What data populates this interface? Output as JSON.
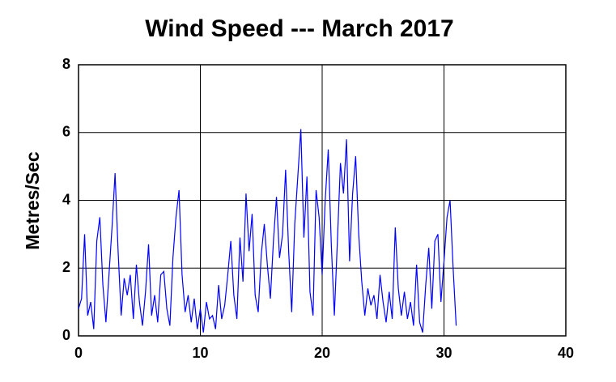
{
  "chart_data": {
    "type": "line",
    "title": "Wind Speed --- March 2017",
    "y_label": "Metres/Sec",
    "xlim": [
      0,
      40
    ],
    "xticks": [
      0,
      10,
      20,
      30,
      40
    ],
    "ylim": [
      0,
      8
    ],
    "yticks": [
      0,
      2,
      4,
      6,
      8
    ],
    "grid": true,
    "series": [
      {
        "color": "#0000ff",
        "x": [
          0,
          0.25,
          0.5,
          0.75,
          1,
          1.25,
          1.5,
          1.75,
          2,
          2.25,
          2.5,
          2.75,
          3,
          3.25,
          3.5,
          3.75,
          4,
          4.25,
          4.5,
          4.75,
          5,
          5.25,
          5.5,
          5.75,
          6,
          6.25,
          6.5,
          6.75,
          7,
          7.25,
          7.5,
          7.75,
          8,
          8.25,
          8.5,
          8.75,
          9,
          9.25,
          9.5,
          9.75,
          10,
          10.25,
          10.5,
          10.75,
          11,
          11.25,
          11.5,
          11.75,
          12,
          12.25,
          12.5,
          12.75,
          13,
          13.25,
          13.5,
          13.75,
          14,
          14.25,
          14.5,
          14.75,
          15,
          15.25,
          15.5,
          15.75,
          16,
          16.25,
          16.5,
          16.75,
          17,
          17.25,
          17.5,
          17.75,
          18,
          18.25,
          18.5,
          18.75,
          19,
          19.25,
          19.5,
          19.75,
          20,
          20.25,
          20.5,
          20.75,
          21,
          21.25,
          21.5,
          21.75,
          22,
          22.25,
          22.5,
          22.75,
          23,
          23.25,
          23.5,
          23.75,
          24,
          24.25,
          24.5,
          24.75,
          25,
          25.25,
          25.5,
          25.75,
          26,
          26.25,
          26.5,
          26.75,
          27,
          27.25,
          27.5,
          27.75,
          28,
          28.25,
          28.5,
          28.75,
          29,
          29.25,
          29.5,
          29.75,
          30,
          30.25,
          30.5,
          30.75,
          31
        ],
        "values": [
          0.8,
          1.1,
          3.0,
          0.6,
          1.0,
          0.2,
          2.8,
          3.5,
          1.5,
          0.4,
          1.8,
          3.2,
          4.8,
          2.5,
          0.6,
          1.7,
          1.2,
          1.8,
          0.5,
          2.1,
          1.0,
          0.3,
          1.3,
          2.7,
          0.6,
          1.2,
          0.4,
          1.8,
          1.9,
          0.8,
          0.3,
          2.3,
          3.5,
          4.3,
          1.8,
          0.7,
          1.2,
          0.4,
          1.1,
          0.2,
          0.8,
          0.1,
          1.0,
          0.5,
          0.6,
          0.2,
          1.5,
          0.5,
          0.9,
          1.8,
          2.8,
          1.2,
          0.5,
          2.9,
          1.6,
          4.2,
          2.5,
          3.6,
          1.2,
          0.7,
          2.4,
          3.3,
          2.1,
          1.1,
          2.8,
          4.1,
          2.3,
          3.0,
          4.9,
          2.5,
          0.7,
          3.3,
          4.7,
          6.1,
          2.9,
          4.7,
          1.3,
          0.6,
          4.3,
          3.5,
          1.8,
          4.0,
          5.5,
          2.7,
          0.6,
          2.8,
          5.1,
          4.2,
          5.8,
          2.2,
          4.2,
          5.3,
          3.0,
          1.6,
          0.6,
          1.4,
          0.9,
          1.2,
          0.5,
          1.8,
          1.0,
          0.4,
          1.3,
          0.5,
          3.2,
          1.4,
          0.6,
          1.3,
          0.5,
          1.0,
          0.3,
          2.1,
          0.4,
          0.1,
          1.5,
          2.6,
          0.8,
          2.8,
          3.0,
          1.0,
          2.2,
          3.5,
          4.0,
          2.0,
          0.3
        ]
      }
    ]
  }
}
